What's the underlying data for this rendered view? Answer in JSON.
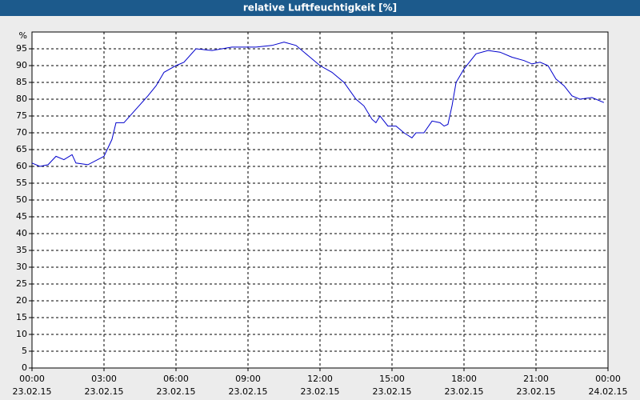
{
  "chart_data": {
    "type": "line",
    "title": "relative Luftfeuchtigkeit [%]",
    "y_unit": "%",
    "x": [
      0,
      0.33,
      0.67,
      1.0,
      1.33,
      1.67,
      1.83,
      2.33,
      3.0,
      3.33,
      3.5,
      3.83,
      4.33,
      4.83,
      5.17,
      5.5,
      6.0,
      6.33,
      6.83,
      7.5,
      8.33,
      9.0,
      9.33,
      10.0,
      10.5,
      11.0,
      11.5,
      12.0,
      12.5,
      13.0,
      13.5,
      13.83,
      14.17,
      14.33,
      14.5,
      14.83,
      15.17,
      15.5,
      15.83,
      16.0,
      16.33,
      16.67,
      17.0,
      17.17,
      17.33,
      17.5,
      17.67,
      18.0,
      18.5,
      19.0,
      19.5,
      20.0,
      20.5,
      20.83,
      21.17,
      21.5,
      21.83,
      22.17,
      22.5,
      22.83,
      23.33,
      23.83
    ],
    "series": [
      {
        "name": "relative Luftfeuchtigkeit",
        "color": "#0000cc",
        "values": [
          61,
          60,
          60.5,
          63,
          62,
          63.5,
          61,
          60.5,
          63,
          68,
          73,
          73,
          77,
          81,
          84,
          88,
          90,
          91,
          95,
          94.5,
          95.5,
          95.5,
          95.5,
          96,
          97,
          96,
          93,
          90,
          88,
          85,
          80,
          78,
          74,
          73,
          75,
          72,
          72,
          70,
          68.5,
          70,
          70,
          73.5,
          73,
          72,
          72.5,
          78,
          85,
          89,
          93.5,
          94.5,
          94,
          92.5,
          91.5,
          90.5,
          91,
          90,
          86,
          84,
          81,
          80,
          80.5,
          79
        ]
      }
    ],
    "xlim": [
      0,
      24
    ],
    "xticks": [
      {
        "value": 0,
        "label": "00:00"
      },
      {
        "value": 3,
        "label": "03:00"
      },
      {
        "value": 6,
        "label": "06:00"
      },
      {
        "value": 9,
        "label": "09:00"
      },
      {
        "value": 12,
        "label": "12:00"
      },
      {
        "value": 15,
        "label": "15:00"
      },
      {
        "value": 18,
        "label": "18:00"
      },
      {
        "value": 21,
        "label": "21:00"
      },
      {
        "value": 24,
        "label": "00:00"
      }
    ],
    "xtick_dates": [
      "23.02.15",
      "23.02.15",
      "23.02.15",
      "23.02.15",
      "23.02.15",
      "23.02.15",
      "23.02.15",
      "23.02.15",
      "24.02.15"
    ],
    "ylim": [
      0,
      100
    ],
    "yticks": [
      0,
      5,
      10,
      15,
      20,
      25,
      30,
      35,
      40,
      45,
      50,
      55,
      60,
      65,
      70,
      75,
      80,
      85,
      90,
      95
    ],
    "grid": true
  }
}
